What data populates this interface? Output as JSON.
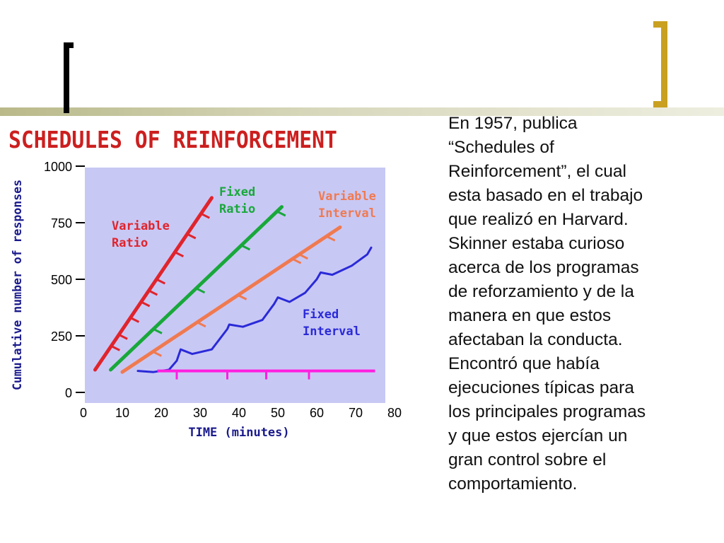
{
  "slide": {
    "chart_title": "SCHEDULES OF REINFORCEMENT",
    "text_lines": [
      "En 1957, publica",
      "“Schedules of",
      "Reinforcement”, el cual",
      "esta basado en el trabajo",
      "que realizó en Harvard.",
      "Skinner estaba curioso",
      "acerca de los programas",
      "de reforzamiento y de la",
      "manera en que estos",
      "afectaban la conducta.",
      "Encontró que había",
      "ejecuciones típicas para",
      "los principales programas",
      "y que estos ejercían un",
      "gran control sobre el",
      "comportamiento."
    ]
  },
  "colors": {
    "plot_background": "#c8c8f5",
    "variable_ratio": "#e0242c",
    "fixed_ratio": "#18a83a",
    "variable_interval": "#f07a50",
    "fixed_interval": "#2a2ad8",
    "reinforcer_line": "#ff1fe0",
    "axis_text": "#1a1a8c",
    "tick_labels": "#000000",
    "title": "#cc1f1f",
    "bracket_right": "#c9a020"
  },
  "chart_data": {
    "type": "line",
    "title": "SCHEDULES OF REINFORCEMENT",
    "xlabel": "TIME (minutes)",
    "ylabel": "Cumulative number of responses",
    "xlim": [
      0,
      80
    ],
    "ylim": [
      0,
      1000
    ],
    "x_ticks": [
      "0",
      "10",
      "20",
      "30",
      "40",
      "50",
      "60",
      "70",
      "80"
    ],
    "y_ticks": [
      "0",
      "250",
      "500",
      "750",
      "1000"
    ],
    "series": [
      {
        "name": "Variable Ratio",
        "label_lines": [
          "Variable",
          "Ratio"
        ],
        "start": [
          3,
          100
        ],
        "end": [
          33,
          860
        ],
        "reinforcements_at_y": [
          205,
          255,
          330,
          400,
          450,
          500,
          620,
          700,
          790
        ]
      },
      {
        "name": "Fixed Ratio",
        "label_lines": [
          "Fixed",
          "Ratio"
        ],
        "start": [
          7,
          100
        ],
        "end": [
          51,
          820
        ],
        "reinforcements_at_y": [
          280,
          460,
          650,
          800
        ]
      },
      {
        "name": "Variable Interval",
        "label_lines": [
          "Variable",
          "Interval"
        ],
        "start": [
          10,
          90
        ],
        "end": [
          66,
          730
        ],
        "reinforcements_at_y": [
          180,
          310,
          430,
          590,
          610,
          690
        ]
      },
      {
        "name": "Fixed Interval",
        "label_lines": [
          "Fixed",
          "Interval"
        ],
        "points": [
          [
            14,
            95
          ],
          [
            18,
            90
          ],
          [
            22,
            100
          ],
          [
            24,
            140
          ],
          [
            25,
            190
          ],
          [
            28,
            170
          ],
          [
            33,
            190
          ],
          [
            37,
            280
          ],
          [
            37.5,
            300
          ],
          [
            41,
            290
          ],
          [
            46,
            320
          ],
          [
            49,
            390
          ],
          [
            50,
            420
          ],
          [
            53,
            400
          ],
          [
            57,
            440
          ],
          [
            60,
            500
          ],
          [
            61,
            530
          ],
          [
            64,
            520
          ],
          [
            69,
            560
          ],
          [
            73,
            610
          ],
          [
            74,
            640
          ]
        ]
      }
    ],
    "reinforcer_line": {
      "x_start": 19,
      "x_end": 75,
      "y": 95,
      "ticks_at_x": [
        24,
        37,
        47,
        58
      ]
    }
  }
}
